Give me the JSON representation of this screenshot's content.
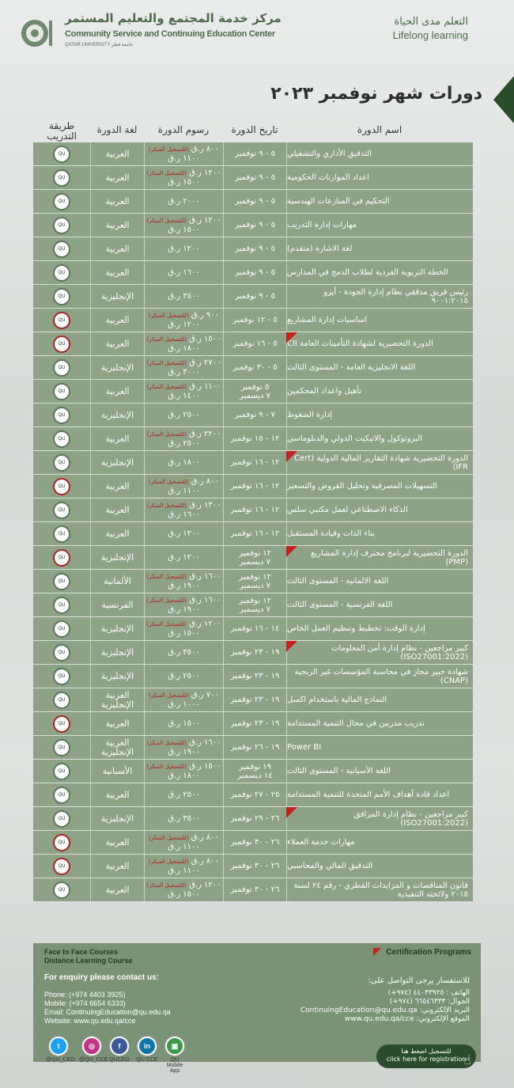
{
  "header": {
    "center_ar": "مركز خدمة المجتمع والتعليم المستمر",
    "center_en": "Community Service and Continuing Education Center",
    "university": "QATAR UNIVERSITY جامعة قطر",
    "slogan_ar": "التعلم مدى الحياة",
    "slogan_en": "Lifelong learning"
  },
  "title": "دورات شهر نوفمبر ٢٠٢٣",
  "columns": {
    "name": "اسم الدورة",
    "date": "تاريخ الدورة",
    "fee": "رسوم الدورة",
    "lang": "لغة الدورة",
    "mode": "طريقة التدريب"
  },
  "early_label": "(للتسجيل المبكر)",
  "courses": [
    {
      "name": "التدقيق الأداري والتشغيلي",
      "date": "٥ - ٩ نوفمبر",
      "date2": "",
      "fee": "٨٠٠ ر.ق",
      "early": true,
      "fee2": "١١٠٠ ر.ق",
      "lang": "العربية",
      "lang2": "",
      "mode": "face",
      "badge": false
    },
    {
      "name": "اعداد الموازنات الحكومية",
      "date": "٥ - ٩ نوفمبر",
      "date2": "",
      "fee": "١٢٠٠ ر.ق",
      "early": true,
      "fee2": "١٥٠٠ ر.ق",
      "lang": "العربية",
      "lang2": "",
      "mode": "face",
      "badge": false
    },
    {
      "name": "التحكيم في المنازعات الهندسية",
      "date": "٥ - ٩ نوفمبر",
      "date2": "",
      "fee": "٢٠٠٠ ر.ق",
      "early": false,
      "fee2": "",
      "lang": "العربية",
      "lang2": "",
      "mode": "face",
      "badge": false
    },
    {
      "name": "مهارات إدارة التدريب",
      "date": "٥ - ٩ نوفمبر",
      "date2": "",
      "fee": "١٢٠٠ ر.ق",
      "early": true,
      "fee2": "١٥٠٠ ر.ق",
      "lang": "العربية",
      "lang2": "",
      "mode": "face",
      "badge": false
    },
    {
      "name": "لغة الاشارة (متقدم)",
      "date": "٥ - ٩ نوفمبر",
      "date2": "",
      "fee": "١٢٠٠ ر.ق",
      "early": false,
      "fee2": "",
      "lang": "العربية",
      "lang2": "",
      "mode": "face",
      "badge": false
    },
    {
      "name": "الخطة التربوية الفردية لطلاب الدمج في المدارس",
      "date": "٥ - ٩ نوفمبر",
      "date2": "",
      "fee": "١٦٠٠ ر.ق",
      "early": false,
      "fee2": "",
      "lang": "العربية",
      "lang2": "",
      "mode": "face",
      "badge": false
    },
    {
      "name": "رئيس فريق مدققي نظام إدارة الجودة - أيزو ٩٠٠١:٢٠١٥",
      "date": "٥ - ٩ نوفمبر",
      "date2": "",
      "fee": "٣٥٠٠ ر.ق",
      "early": false,
      "fee2": "",
      "lang": "الإنجليزية",
      "lang2": "",
      "mode": "face",
      "badge": false
    },
    {
      "name": "اساسيات إدارة المشاريع",
      "date": "٥ - ١٢ نوفمبر",
      "date2": "",
      "fee": "٩٠٠ ر.ق",
      "early": true,
      "fee2": "١٢٠٠ ر.ق",
      "lang": "العربية",
      "lang2": "",
      "mode": "online",
      "badge": false
    },
    {
      "name": "الدورة التحضيرية لشهادة التأمينات العامة CII",
      "date": "٥ - ١٦ نوفمبر",
      "date2": "",
      "fee": "١٥٠٠ ر.ق",
      "early": true,
      "fee2": "١٨٠٠ ر.ق",
      "lang": "العربية",
      "lang2": "",
      "mode": "online",
      "badge": true
    },
    {
      "name": "اللغة الانجليزية العامة - المستوى الثالث",
      "date": "٥ - ٣٠ نوفمبر",
      "date2": "",
      "fee": "٢٧٠٠ ر.ق",
      "early": true,
      "fee2": "٣٠٠٠ ر.ق",
      "lang": "الإنجليزية",
      "lang2": "",
      "mode": "face",
      "badge": false
    },
    {
      "name": "تأهيل واعداد المحكمين",
      "date": "٥ نوفمبر",
      "date2": "٧ ديسمبر",
      "fee": "١١٠٠ ر.ق",
      "early": true,
      "fee2": "١٤٠٠ ر.ق",
      "lang": "العربية",
      "lang2": "",
      "mode": "face",
      "badge": false
    },
    {
      "name": "إدارة الضغوط",
      "date": "٧ - ٩ نوفمبر",
      "date2": "",
      "fee": "٢٥٠٠ ر.ق",
      "early": false,
      "fee2": "",
      "lang": "الإنجليزية",
      "lang2": "",
      "mode": "face",
      "badge": false
    },
    {
      "name": "البروتوكول والاتيكيت الدولي والدبلوماسي",
      "date": "١٢ - ١٥ نوفمبر",
      "date2": "",
      "fee": "٢٢٠٠ ر.ق",
      "early": true,
      "fee2": "٢٥٠٠ ر.ق",
      "lang": "العربية",
      "lang2": "",
      "mode": "face",
      "badge": false
    },
    {
      "name": "الدورة التحضيرية شهادة التقارير المالية الدولية (Cert IFR)",
      "date": "١٢ - ١٦ نوفمبر",
      "date2": "",
      "fee": "١٨٠٠ ر.ق",
      "early": false,
      "fee2": "",
      "lang": "الإنجليزية",
      "lang2": "",
      "mode": "face",
      "badge": true
    },
    {
      "name": "التسهيلات المصرفية وتحليل القروض والتسعير",
      "date": "١٢ - ١٦ نوفمبر",
      "date2": "",
      "fee": "٨٠٠ ر.ق",
      "early": true,
      "fee2": "١١٠٠ ر.ق",
      "lang": "العربية",
      "lang2": "",
      "mode": "online",
      "badge": false
    },
    {
      "name": "الذكاء الاصطناعي لعمل مكتبي سلس",
      "date": "١٢ - ١٦ نوفمبر",
      "date2": "",
      "fee": "١٣٠٠ ر.ق",
      "early": true,
      "fee2": "١٦٠٠ ر.ق",
      "lang": "العربية",
      "lang2": "",
      "mode": "face",
      "badge": false
    },
    {
      "name": "بناء الذات وقيادة المستقبل",
      "date": "١٢ - ١٦ نوفمبر",
      "date2": "",
      "fee": "١٢٠٠ ر.ق",
      "early": false,
      "fee2": "",
      "lang": "العربية",
      "lang2": "",
      "mode": "face",
      "badge": false
    },
    {
      "name": "الدورة التحضيرية لبرنامج محترف إدارة المشاريع (PMP)",
      "date": "١٢ نوفمبر",
      "date2": "٧ ديسمبر",
      "fee": "١٢٠٠ ر.ق",
      "early": false,
      "fee2": "",
      "lang": "الإنجليزية",
      "lang2": "",
      "mode": "online",
      "badge": true
    },
    {
      "name": "اللغة الالمانية - المستوى الثالث",
      "date": "١٢ نوفمبر",
      "date2": "٧ ديسمبر",
      "fee": "١٦٠٠ ر.ق",
      "early": true,
      "fee2": "١٩٠٠ ر.ق",
      "lang": "الألمانية",
      "lang2": "",
      "mode": "face",
      "badge": false
    },
    {
      "name": "اللغة الفرنسية - المستوى الثالث",
      "date": "١٢ نوفمبر",
      "date2": "٧ ديسمبر",
      "fee": "١٦٠٠ ر.ق",
      "early": true,
      "fee2": "١٩٠٠ ر.ق",
      "lang": "الفرنسية",
      "lang2": "",
      "mode": "face",
      "badge": false
    },
    {
      "name": "إدارة الوقت: تخطيط وتنظيم العمل الخاص",
      "date": "١٤ - ١٦ نوفمبر",
      "date2": "",
      "fee": "١٢٠٠ ر.ق",
      "early": true,
      "fee2": "١٥٠٠ ر.ق",
      "lang": "الإنجليزية",
      "lang2": "",
      "mode": "face",
      "badge": false
    },
    {
      "name": "كبير مراجعين - نظام إدارة أمن المعلومات (ISO27001:2022)",
      "date": "١٩ - ٢٣ نوفمبر",
      "date2": "",
      "fee": "٣٥٠٠ ر.ق",
      "early": false,
      "fee2": "",
      "lang": "الإنجليزية",
      "lang2": "",
      "mode": "face",
      "badge": true
    },
    {
      "name": "شهادة خبير مجاز في محاسبة المؤسسات غير الربحية (CNAP)",
      "date": "١٩ - ٢٣ نوفمبر",
      "date2": "",
      "fee": "٢٥٠٠ ر.ق",
      "early": false,
      "fee2": "",
      "lang": "الإنجليزية",
      "lang2": "",
      "mode": "face",
      "badge": false
    },
    {
      "name": "النماذج المالية باستخدام اكسل",
      "date": "١٩ - ٢٣ نوفمبر",
      "date2": "",
      "fee": "٧٠٠ ر.ق",
      "early": true,
      "fee2": "١٠٠٠ ر.ق",
      "lang": "العربية",
      "lang2": "الإنجليزية",
      "mode": "face",
      "badge": false
    },
    {
      "name": "تدريب مدربين في مجال التنمية المستدامة",
      "date": "١٩ - ٢٣ نوفمبر",
      "date2": "",
      "fee": "١٥٠٠ ر.ق",
      "early": false,
      "fee2": "",
      "lang": "العربية",
      "lang2": "",
      "mode": "online",
      "badge": false
    },
    {
      "name": "Power BI",
      "date": "١٩ - ٢٦ نوفمبر",
      "date2": "",
      "fee": "١٦٠٠ ر.ق",
      "early": true,
      "fee2": "١٩٠٠ ر.ق",
      "lang": "العربية",
      "lang2": "الإنجليزية",
      "mode": "face",
      "badge": false
    },
    {
      "name": "اللغة الأسبانية - المستوى الثالث",
      "date": "١٩ نوفمبر",
      "date2": "١٤ ديسمبر",
      "fee": "١٥٠٠ ر.ق",
      "early": true,
      "fee2": "١٨٠٠ ر.ق",
      "lang": "الأسبانية",
      "lang2": "",
      "mode": "face",
      "badge": false
    },
    {
      "name": "اعداد قادة أهداف الأمم المتحدة للتنمية المستدامة",
      "date": "٢٥ - ٢٧ نوفمبر",
      "date2": "",
      "fee": "٢٥٠٠ ر.ق",
      "early": false,
      "fee2": "",
      "lang": "العربية",
      "lang2": "",
      "mode": "face",
      "badge": false
    },
    {
      "name": "كبير مراجعين - نظام إدارة المرافق (ISO27001:2022)",
      "date": "٢٦ - ٢٩ نوفمبر",
      "date2": "",
      "fee": "٣٥٠٠ ر.ق",
      "early": false,
      "fee2": "",
      "lang": "الإنجليزية",
      "lang2": "",
      "mode": "face",
      "badge": true
    },
    {
      "name": "مهارات خدمة العملاء",
      "date": "٢٦ - ٣٠ نوفمبر",
      "date2": "",
      "fee": "٨٠٠ ر.ق",
      "early": true,
      "fee2": "١١٠٠ ر.ق",
      "lang": "العربية",
      "lang2": "",
      "mode": "online",
      "badge": false
    },
    {
      "name": "التدقيق المالي والمحاسبي",
      "date": "٢٦ - ٣٠ نوفمبر",
      "date2": "",
      "fee": "٨٠٠ ر.ق",
      "early": true,
      "fee2": "١١٠٠ ر.ق",
      "lang": "العربية",
      "lang2": "",
      "mode": "online",
      "badge": false
    },
    {
      "name": "قانون المناقصات و المزايدات القطري - رقم ٢٤ لسنة ٢٠١٥ ولائحته التنفيذية",
      "date": "٢٦ - ٣٠ نوفمبر",
      "date2": "",
      "fee": "١٢٠٠ ر.ق",
      "early": true,
      "fee2": "١٥٠٠ ر.ق",
      "lang": "العربية",
      "lang2": "",
      "mode": "face",
      "badge": false
    }
  ],
  "footer": {
    "legend_face": "Face to Face Courses",
    "legend_online": "Distance Learning Course",
    "cert": "Certification Programs",
    "enquiry_en": "For enquiry please contact us:",
    "enquiry_ar": "للاستفسار يرجى التواصل على:",
    "phone_en": "Phone: (+974 4403 3925)",
    "mobile_en": "Mobile: (+974 6654 6333)",
    "email_en": "Email: ContinuingEducation@qu.edu.qa",
    "web_en": "Website: www.qu.edu.qa/cce",
    "phone_ar": "الهاتف : ٤٤٠٣٣٩٢٥ (٩٧٤+)",
    "mobile_ar": "الجوال: ٦٦٥٤٦٣٣٣ (٩٧٤+)",
    "email_ar": "البريد الإلكتروني: ContinuingEducation@qu.edu.qa",
    "web_ar": "الموقع الإلكتروني: www.qu.edu.qa/cce"
  },
  "social": [
    {
      "label": "@QU_CEO",
      "icon": "twitter-icon",
      "glyph": "t",
      "color": "#1da1f2"
    },
    {
      "label": "@QU_CCE",
      "icon": "instagram-icon",
      "glyph": "◎",
      "color": "#c13584"
    },
    {
      "label": "QUCEO",
      "icon": "facebook-icon",
      "glyph": "f",
      "color": "#3b5998"
    },
    {
      "label": "QU CCE",
      "icon": "linkedin-icon",
      "glyph": "in",
      "color": "#0e76a8"
    },
    {
      "label": "QU Mobile App",
      "icon": "mobile-app-icon",
      "glyph": "▣",
      "color": "#3a9a4a"
    }
  ],
  "register": {
    "ar": "للتسجيل اضغط هنا",
    "en": "click here for registration"
  }
}
